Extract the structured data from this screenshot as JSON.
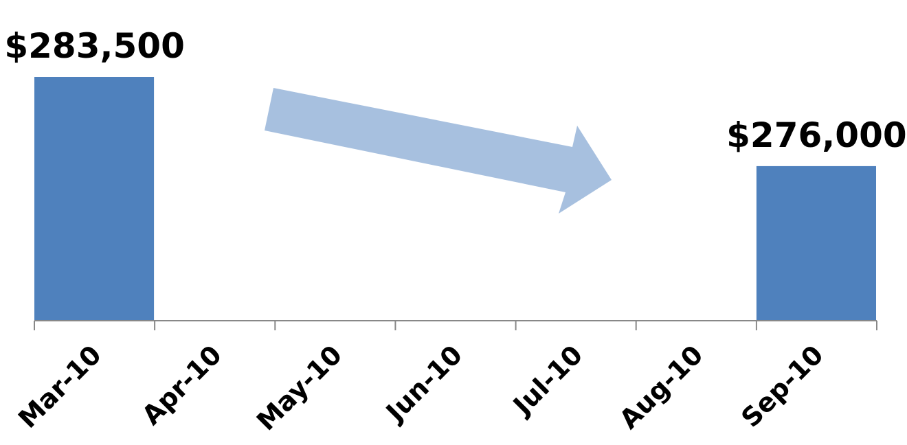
{
  "chart_data": {
    "type": "bar",
    "categories": [
      "Mar-10",
      "Apr-10",
      "May-10",
      "Jun-10",
      "Jul-10",
      "Aug-10",
      "Sep-10"
    ],
    "values": [
      283500,
      null,
      null,
      null,
      null,
      null,
      276000
    ],
    "data_labels": [
      "$283,500",
      "",
      "",
      "",
      "",
      "",
      "$276,000"
    ],
    "title": "",
    "xlabel": "",
    "ylabel": "",
    "ylim": [
      263000,
      285000
    ],
    "grid": false,
    "legend": "none",
    "annotations": [
      {
        "type": "arrow",
        "direction": "down-right",
        "from_category": "May-10",
        "to_category": "Aug-10"
      }
    ],
    "colors": {
      "bar": "#4f81bd",
      "arrow": "#a7c0df",
      "axis": "#888888"
    }
  }
}
